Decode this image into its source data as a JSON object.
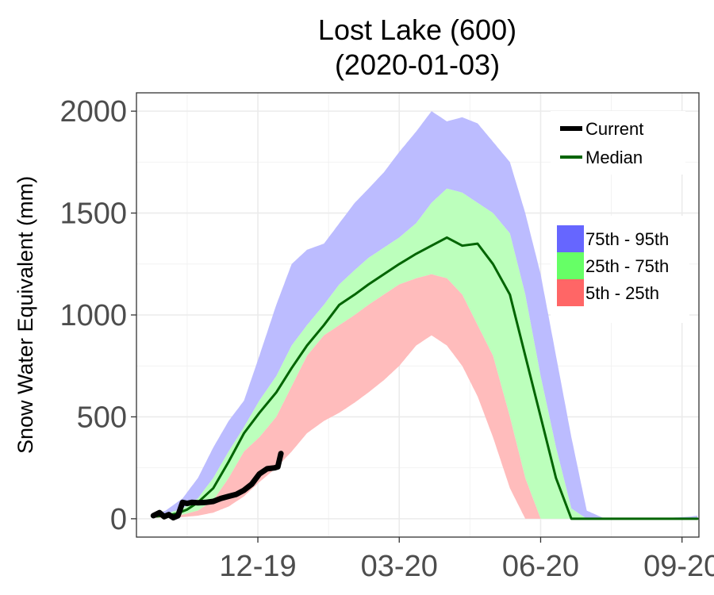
{
  "chart_data": {
    "type": "area",
    "title_line1": "Lost Lake (600)",
    "title_line2": "(2020-01-03)",
    "ylabel": "Snow Water Equivalent (mm)",
    "xlabel": "",
    "x_unit": "date",
    "xlim": [
      "2019-10-01",
      "2020-10-01"
    ],
    "ylim": [
      -90,
      2090
    ],
    "yticks": [
      0,
      500,
      1000,
      1500,
      2000
    ],
    "ytick_labels": [
      "0",
      "500",
      "1000",
      "1500",
      "2000"
    ],
    "xticks": [
      "2019-12-19",
      "2020-03-20",
      "2020-06-20",
      "2020-09-20"
    ],
    "xtick_labels": [
      "12-19",
      "03-20",
      "06-20",
      "09-20"
    ],
    "grid": true,
    "legend_position": "top-right",
    "colors": {
      "p75_95": "#bcbcff",
      "p25_75": "#bcffbc",
      "p5_25": "#ffbcbc",
      "median": "#006400",
      "current": "#000000",
      "legend_p75_95": "#6666ff",
      "legend_p25_75": "#66ff66",
      "legend_p5_25": "#ff6666"
    },
    "bands": [
      {
        "name": "75th - 95th",
        "color_key": "p75_95",
        "lower_series": "p75",
        "upper_series": "p95"
      },
      {
        "name": "25th - 75th",
        "color_key": "p25_75",
        "lower_series": "p25",
        "upper_series": "p75"
      },
      {
        "name": "5th - 25th",
        "color_key": "p5_25",
        "lower_series": "p5",
        "upper_series": "p25"
      }
    ],
    "series": [
      {
        "name": "Current",
        "color_key": "current",
        "x": [
          "2019-10-12",
          "2019-10-16",
          "2019-10-19",
          "2019-10-22",
          "2019-10-25",
          "2019-10-28",
          "2019-10-31",
          "2019-11-03",
          "2019-11-06",
          "2019-11-10",
          "2019-11-15",
          "2019-11-20",
          "2019-11-25",
          "2019-11-30",
          "2019-12-05",
          "2019-12-10",
          "2019-12-15",
          "2019-12-20",
          "2019-12-25",
          "2019-12-30",
          "2020-01-01",
          "2020-01-03"
        ],
        "y": [
          15,
          30,
          10,
          20,
          5,
          15,
          80,
          75,
          80,
          78,
          80,
          85,
          100,
          110,
          120,
          140,
          170,
          220,
          245,
          250,
          255,
          320
        ]
      },
      {
        "name": "Median",
        "color_key": "median",
        "x": [
          "2019-10-12",
          "2019-10-20",
          "2019-10-27",
          "2019-11-03",
          "2019-11-10",
          "2019-11-20",
          "2019-11-30",
          "2019-12-10",
          "2019-12-20",
          "2019-12-31",
          "2020-01-10",
          "2020-01-20",
          "2020-01-31",
          "2020-02-10",
          "2020-02-20",
          "2020-02-29",
          "2020-03-10",
          "2020-03-20",
          "2020-03-31",
          "2020-04-10",
          "2020-04-20",
          "2020-04-30",
          "2020-05-10",
          "2020-05-20",
          "2020-05-31",
          "2020-06-10",
          "2020-06-20",
          "2020-06-30",
          "2020-07-10",
          "2020-07-20",
          "2020-08-01",
          "2020-09-01",
          "2020-09-30"
        ],
        "y": [
          10,
          15,
          25,
          45,
          80,
          150,
          280,
          420,
          520,
          620,
          740,
          850,
          950,
          1050,
          1100,
          1150,
          1200,
          1250,
          1300,
          1340,
          1380,
          1340,
          1350,
          1250,
          1100,
          800,
          500,
          200,
          0,
          0,
          0,
          0,
          0
        ]
      },
      {
        "name": "p95",
        "x": [
          "2019-10-12",
          "2019-10-20",
          "2019-10-31",
          "2019-11-10",
          "2019-11-20",
          "2019-11-30",
          "2019-12-10",
          "2019-12-20",
          "2019-12-31",
          "2020-01-10",
          "2020-01-20",
          "2020-01-31",
          "2020-02-10",
          "2020-02-20",
          "2020-02-29",
          "2020-03-10",
          "2020-03-20",
          "2020-03-31",
          "2020-04-10",
          "2020-04-20",
          "2020-04-30",
          "2020-05-10",
          "2020-05-20",
          "2020-05-31",
          "2020-06-10",
          "2020-06-20",
          "2020-06-30",
          "2020-07-10",
          "2020-07-20",
          "2020-08-01",
          "2020-09-01",
          "2020-09-25",
          "2020-09-30"
        ],
        "y": [
          20,
          40,
          100,
          200,
          350,
          480,
          580,
          800,
          1050,
          1250,
          1320,
          1350,
          1450,
          1550,
          1620,
          1700,
          1800,
          1900,
          2000,
          1950,
          1970,
          1940,
          1850,
          1750,
          1500,
          1200,
          800,
          400,
          40,
          0,
          0,
          10,
          15
        ]
      },
      {
        "name": "p75",
        "x": [
          "2019-10-12",
          "2019-10-20",
          "2019-10-31",
          "2019-11-10",
          "2019-11-20",
          "2019-11-30",
          "2019-12-10",
          "2019-12-20",
          "2019-12-31",
          "2020-01-10",
          "2020-01-20",
          "2020-01-31",
          "2020-02-10",
          "2020-02-20",
          "2020-02-29",
          "2020-03-10",
          "2020-03-20",
          "2020-03-31",
          "2020-04-10",
          "2020-04-20",
          "2020-04-30",
          "2020-05-10",
          "2020-05-20",
          "2020-05-31",
          "2020-06-10",
          "2020-06-20",
          "2020-06-30",
          "2020-07-10",
          "2020-07-20",
          "2020-08-01",
          "2020-09-01",
          "2020-09-30"
        ],
        "y": [
          15,
          25,
          50,
          100,
          200,
          330,
          450,
          580,
          700,
          850,
          950,
          1050,
          1150,
          1220,
          1280,
          1330,
          1380,
          1450,
          1550,
          1620,
          1600,
          1550,
          1500,
          1400,
          1100,
          700,
          350,
          50,
          0,
          0,
          0,
          0
        ]
      },
      {
        "name": "p25",
        "x": [
          "2019-10-12",
          "2019-10-20",
          "2019-10-31",
          "2019-11-10",
          "2019-11-20",
          "2019-11-30",
          "2019-12-10",
          "2019-12-20",
          "2019-12-31",
          "2020-01-10",
          "2020-01-20",
          "2020-01-31",
          "2020-02-10",
          "2020-02-20",
          "2020-02-29",
          "2020-03-10",
          "2020-03-20",
          "2020-03-31",
          "2020-04-10",
          "2020-04-20",
          "2020-04-30",
          "2020-05-10",
          "2020-05-20",
          "2020-05-31",
          "2020-06-10",
          "2020-06-20",
          "2020-06-30",
          "2020-07-10",
          "2020-07-20",
          "2020-08-01",
          "2020-09-01",
          "2020-09-30"
        ],
        "y": [
          10,
          12,
          20,
          40,
          90,
          200,
          330,
          400,
          500,
          650,
          800,
          900,
          950,
          1000,
          1050,
          1100,
          1150,
          1180,
          1200,
          1180,
          1100,
          950,
          800,
          500,
          200,
          0,
          0,
          0,
          0,
          0,
          0,
          0
        ]
      },
      {
        "name": "p5",
        "x": [
          "2019-10-12",
          "2019-10-20",
          "2019-10-31",
          "2019-11-10",
          "2019-11-20",
          "2019-11-30",
          "2019-12-10",
          "2019-12-20",
          "2019-12-31",
          "2020-01-10",
          "2020-01-20",
          "2020-01-31",
          "2020-02-10",
          "2020-02-20",
          "2020-02-29",
          "2020-03-10",
          "2020-03-20",
          "2020-03-31",
          "2020-04-10",
          "2020-04-20",
          "2020-04-30",
          "2020-05-10",
          "2020-05-20",
          "2020-05-31",
          "2020-06-10",
          "2020-06-20",
          "2020-06-30",
          "2020-07-10",
          "2020-07-20",
          "2020-08-01",
          "2020-09-01",
          "2020-09-30"
        ],
        "y": [
          5,
          5,
          8,
          15,
          30,
          60,
          110,
          180,
          250,
          330,
          420,
          480,
          520,
          570,
          620,
          680,
          750,
          850,
          900,
          850,
          750,
          600,
          400,
          150,
          0,
          0,
          0,
          0,
          0,
          0,
          0,
          0
        ]
      }
    ],
    "legend": {
      "lines": [
        {
          "label": "Current",
          "color_key": "current"
        },
        {
          "label": "Median",
          "color_key": "median"
        }
      ],
      "fills": [
        {
          "label": "75th - 95th",
          "color_key": "legend_p75_95"
        },
        {
          "label": "25th - 75th",
          "color_key": "legend_p25_75"
        },
        {
          "label": "5th - 25th",
          "color_key": "legend_p5_25"
        }
      ]
    }
  }
}
